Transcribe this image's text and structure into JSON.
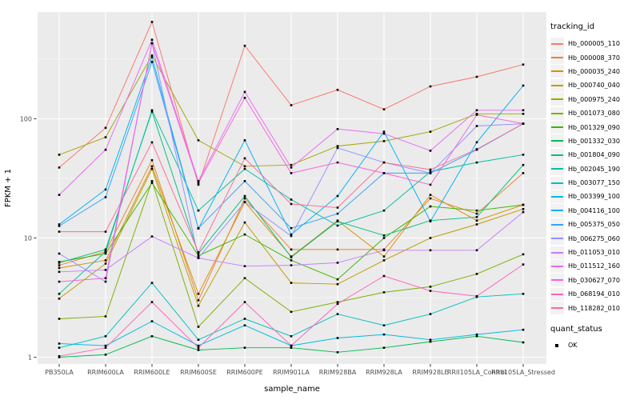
{
  "figure": {
    "y_axis": {
      "label": "FPKM + 1"
    },
    "x_axis": {
      "label": "sample_name"
    },
    "legend": {
      "title": "tracking_id",
      "quant": {
        "title": "quant_status",
        "items": [
          "OK"
        ]
      }
    },
    "colors": {
      "panel_bg": "#EBEBEB",
      "grid": "#FFFFFF",
      "tick_text": "#4D4D4D",
      "point": "#000000",
      "legend_key_bg": "#F2F2F2"
    }
  },
  "chart_data": {
    "type": "line",
    "title": "",
    "xlabel": "sample_name",
    "ylabel": "FPKM + 1",
    "y_scale": "log10",
    "ylim": [
      0.88,
      790
    ],
    "y_ticks": [
      1,
      10,
      100
    ],
    "y_minor_gridlines": [
      3.162,
      31.62,
      316.2
    ],
    "grid": true,
    "legend_position": "right",
    "legend_title": "tracking_id",
    "point_legend": {
      "title": "quant_status",
      "label": "OK"
    },
    "categories": [
      "PB350LA",
      "RRIM600LA",
      "RRIM600LE",
      "RRIM600SE",
      "RRIM600PE",
      "RRIM901LA",
      "RRIM928BA",
      "RRIM928LA",
      "RRIM928LE",
      "RRII105LA_Control",
      "RRII105LA_Stressed"
    ],
    "series": [
      {
        "name": "Hb_000005_110",
        "color": "#F8766D",
        "values": [
          39,
          84,
          650,
          28,
          410,
          130,
          175,
          120,
          187,
          225,
          285
        ]
      },
      {
        "name": "Hb_000008_370",
        "color": "#EA8331",
        "values": [
          5.9,
          7.7,
          45,
          3.0,
          21.5,
          8.0,
          8.0,
          8.0,
          21.5,
          16,
          35
        ]
      },
      {
        "name": "Hb_000035_240",
        "color": "#D89000",
        "values": [
          5.6,
          6.5,
          40,
          3.4,
          20,
          7.0,
          14,
          7.0,
          23,
          14,
          19
        ]
      },
      {
        "name": "Hb_000740_040",
        "color": "#C09B00",
        "values": [
          3.1,
          6.1,
          38,
          2.7,
          13.5,
          4.2,
          4.1,
          6.5,
          10,
          13,
          17.5
        ]
      },
      {
        "name": "Hb_000975_240",
        "color": "#A3A500",
        "values": [
          50,
          70,
          340,
          66,
          40,
          41,
          59,
          65,
          78,
          110,
          110
        ]
      },
      {
        "name": "Hb_001073_080",
        "color": "#7CAE00",
        "values": [
          2.1,
          2.2,
          30,
          1.8,
          4.6,
          2.4,
          2.9,
          3.5,
          3.9,
          5.0,
          7.3
        ]
      },
      {
        "name": "Hb_001329_090",
        "color": "#39B600",
        "values": [
          6.3,
          7.4,
          29,
          7.1,
          10.7,
          6.5,
          4.5,
          10,
          18.4,
          17,
          19
        ]
      },
      {
        "name": "Hb_001332_030",
        "color": "#00BB4E",
        "values": [
          1.0,
          1.05,
          1.5,
          1.15,
          1.2,
          1.2,
          1.1,
          1.2,
          1.35,
          1.5,
          1.33
        ]
      },
      {
        "name": "Hb_001804_090",
        "color": "#00BF7D",
        "values": [
          6.2,
          8.0,
          115,
          7.4,
          22.5,
          6.9,
          13.8,
          10.5,
          14,
          15,
          41
        ]
      },
      {
        "name": "Hb_002045_190",
        "color": "#00C1A3",
        "values": [
          3.4,
          7.7,
          118,
          17,
          38,
          21,
          12.7,
          17,
          36,
          43,
          50
        ]
      },
      {
        "name": "Hb_003077_150",
        "color": "#00BFC4",
        "values": [
          1.2,
          1.5,
          4.2,
          1.4,
          2.1,
          1.5,
          2.3,
          1.85,
          2.3,
          3.2,
          3.4
        ]
      },
      {
        "name": "Hb_003399_100",
        "color": "#00BAE0",
        "values": [
          1.3,
          1.25,
          2.0,
          1.25,
          1.85,
          1.25,
          1.45,
          1.55,
          1.4,
          1.55,
          1.7
        ]
      },
      {
        "name": "Hb_004116_100",
        "color": "#00B0F6",
        "values": [
          13,
          25.5,
          330,
          12,
          66,
          10.7,
          22.5,
          78,
          13.8,
          63.5,
          190
        ]
      },
      {
        "name": "Hb_005375_050",
        "color": "#35A2FF",
        "values": [
          12.6,
          22,
          300,
          12.1,
          30,
          12.1,
          16,
          35,
          35,
          55,
          91
        ]
      },
      {
        "name": "Hb_006275_060",
        "color": "#9590FF",
        "values": [
          7.4,
          4.3,
          430,
          6.8,
          20,
          10.4,
          57,
          43,
          35,
          87,
          91
        ]
      },
      {
        "name": "Hb_011053_010",
        "color": "#C77CFF",
        "values": [
          5.2,
          5.4,
          10.3,
          6.8,
          5.8,
          5.9,
          6.2,
          7.9,
          7.9,
          7.9,
          16.5
        ]
      },
      {
        "name": "Hb_011512_160",
        "color": "#E76BF3",
        "values": [
          23,
          55,
          460,
          30,
          168,
          39,
          82,
          75,
          54,
          118,
          118
        ]
      },
      {
        "name": "Hb_030627_070",
        "color": "#FA62DB",
        "values": [
          4.3,
          4.6,
          430,
          29,
          150,
          35,
          43,
          35,
          28,
          108,
          91
        ]
      },
      {
        "name": "Hb_068194_010",
        "color": "#FF62BC",
        "values": [
          1.02,
          1.2,
          2.9,
          1.2,
          2.9,
          1.25,
          2.8,
          4.8,
          3.6,
          3.25,
          6.0
        ]
      },
      {
        "name": "Hb_118282_010",
        "color": "#FF6A98",
        "values": [
          11.3,
          11.3,
          63.5,
          7.6,
          46.6,
          19.3,
          18,
          43,
          37.5,
          55.6,
          91
        ]
      }
    ]
  }
}
